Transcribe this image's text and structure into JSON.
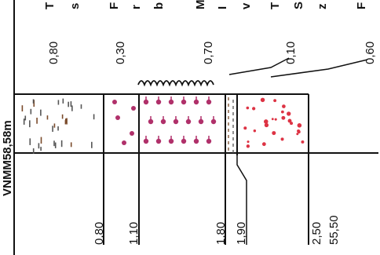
{
  "profile": {
    "elevation_label": "VNMM58,58m",
    "column_header_glyphs": [
      [
        "T",
        "s"
      ],
      [
        "F",
        "r",
        "b"
      ],
      [
        "M",
        "I",
        "v"
      ],
      [
        "T",
        "S",
        "z"
      ],
      [
        "F"
      ]
    ],
    "layer_thicknesses": [
      "0,80",
      "0,30",
      "0,70",
      "0,10",
      "0,60"
    ],
    "depths": [
      "0,80",
      "1,10",
      "1,80",
      "1,90",
      "2,50"
    ],
    "bottom_elevation": "55,50",
    "colors": {
      "line": "#111111",
      "pink_dots": "#b0306a",
      "red_dots": "#dd3344",
      "brown_marks": "#7a4a2a",
      "gray_marks": "#555555"
    }
  }
}
